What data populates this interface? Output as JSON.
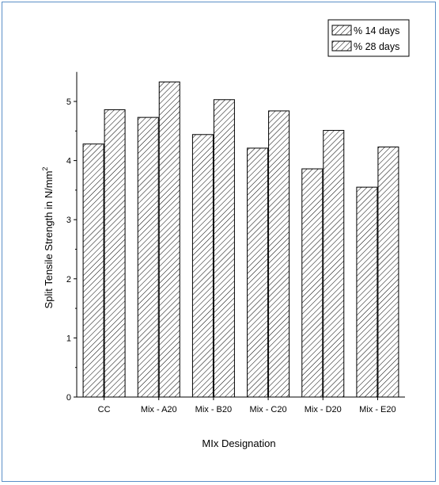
{
  "chart_data": {
    "type": "bar",
    "title": "",
    "xlabel": "MIx Designation",
    "ylabel": "Split Tensile Strength in N/mm",
    "ylabel_superscript": "2",
    "categories": [
      "CC",
      "Mix - A20",
      "Mix - B20",
      "Mix - C20",
      "Mix - D20",
      "Mix - E20"
    ],
    "series": [
      {
        "name": "% 14 days",
        "values": [
          4.28,
          4.73,
          4.44,
          4.21,
          3.86,
          3.55
        ]
      },
      {
        "name": "% 28 days",
        "values": [
          4.86,
          5.33,
          5.03,
          4.84,
          4.51,
          4.23
        ]
      }
    ],
    "ylim": [
      0,
      5.5
    ],
    "yticks": [
      0,
      1,
      2,
      3,
      4,
      5
    ],
    "grid": false,
    "legend_position": "top-right",
    "bar_pattern": "diagonal-hatch",
    "colors": {
      "bar_fill": "#ffffff",
      "hatch": "#000000",
      "frame_border": "#5b8fc7"
    }
  }
}
